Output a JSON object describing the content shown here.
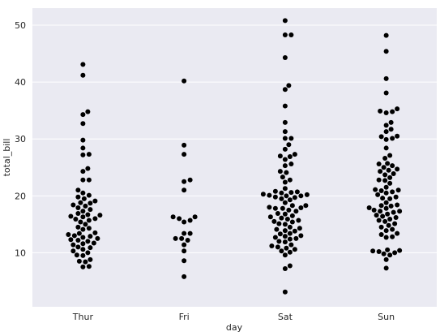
{
  "chart_data": {
    "type": "scatter",
    "subtype": "swarm",
    "title": "",
    "xlabel": "day",
    "ylabel": "total_bill",
    "categories": [
      "Thur",
      "Fri",
      "Sat",
      "Sun"
    ],
    "yticks": [
      10,
      20,
      30,
      40,
      50
    ],
    "ylim": [
      0.5,
      53
    ],
    "grid": true,
    "background": "#eaeaf2",
    "grid_color": "#ffffff",
    "point_color": "#000000",
    "series": [
      {
        "category": "Thur",
        "values": [
          43.1,
          41.2,
          34.8,
          34.3,
          32.7,
          29.8,
          28.4,
          27.3,
          27.2,
          24.8,
          24.3,
          22.8,
          22.8,
          21.0,
          20.5,
          20.1,
          19.8,
          19.5,
          19.1,
          18.8,
          18.7,
          18.4,
          18.2,
          17.9,
          17.6,
          17.3,
          16.9,
          16.7,
          16.6,
          16.4,
          16.3,
          16.0,
          15.9,
          15.7,
          15.4,
          15.0,
          14.5,
          14.3,
          14.1,
          13.5,
          13.4,
          13.2,
          13.0,
          12.9,
          12.7,
          12.5,
          12.3,
          12.2,
          12.0,
          11.7,
          11.6,
          11.4,
          11.0,
          10.9,
          10.6,
          10.3,
          10.0,
          9.6,
          9.5,
          8.8,
          8.5,
          8.4,
          7.6,
          7.5
        ]
      },
      {
        "category": "Fri",
        "values": [
          40.2,
          28.9,
          27.3,
          22.8,
          22.5,
          21.0,
          16.3,
          16.3,
          16.0,
          15.7,
          15.4,
          13.4,
          13.4,
          12.5,
          12.5,
          12.2,
          11.4,
          10.3,
          8.6,
          5.8
        ]
      },
      {
        "category": "Sat",
        "values": [
          50.8,
          48.3,
          48.3,
          44.3,
          39.4,
          38.7,
          35.8,
          32.9,
          31.3,
          30.1,
          30.1,
          29.0,
          28.2,
          27.3,
          27.0,
          26.9,
          26.4,
          25.6,
          25.3,
          24.3,
          24.1,
          23.3,
          22.8,
          22.4,
          21.3,
          20.8,
          20.7,
          20.6,
          20.5,
          20.3,
          20.2,
          20.1,
          20.0,
          20.0,
          19.8,
          19.7,
          19.5,
          19.3,
          18.8,
          18.3,
          18.3,
          18.0,
          17.9,
          17.8,
          17.8,
          17.5,
          17.3,
          16.9,
          16.8,
          16.5,
          16.3,
          16.1,
          15.9,
          15.7,
          15.5,
          15.4,
          15.1,
          15.0,
          14.5,
          14.3,
          14.1,
          13.9,
          13.8,
          13.4,
          13.3,
          13.0,
          12.9,
          12.7,
          12.5,
          12.4,
          12.0,
          11.9,
          11.4,
          11.2,
          11.0,
          10.8,
          10.6,
          10.3,
          10.1,
          9.6,
          7.7,
          7.2,
          3.1
        ]
      },
      {
        "category": "Sun",
        "values": [
          48.2,
          45.4,
          40.6,
          38.1,
          35.3,
          34.9,
          34.8,
          34.6,
          32.9,
          32.4,
          31.7,
          31.3,
          30.5,
          30.4,
          30.1,
          29.9,
          28.4,
          27.1,
          26.6,
          25.7,
          25.6,
          25.3,
          25.0,
          24.7,
          24.5,
          24.3,
          23.9,
          23.7,
          23.2,
          22.8,
          22.7,
          22.2,
          21.5,
          21.1,
          21.0,
          20.9,
          20.7,
          20.5,
          20.2,
          19.8,
          19.6,
          19.5,
          18.8,
          18.4,
          18.3,
          18.2,
          17.9,
          17.8,
          17.5,
          17.3,
          17.3,
          17.1,
          16.8,
          16.6,
          16.4,
          16.2,
          15.9,
          15.7,
          15.5,
          15.1,
          14.8,
          14.5,
          14.1,
          13.9,
          13.4,
          13.2,
          12.8,
          12.7,
          10.5,
          10.4,
          10.3,
          10.2,
          10.0,
          9.8,
          9.6,
          8.8,
          7.3
        ]
      }
    ]
  }
}
